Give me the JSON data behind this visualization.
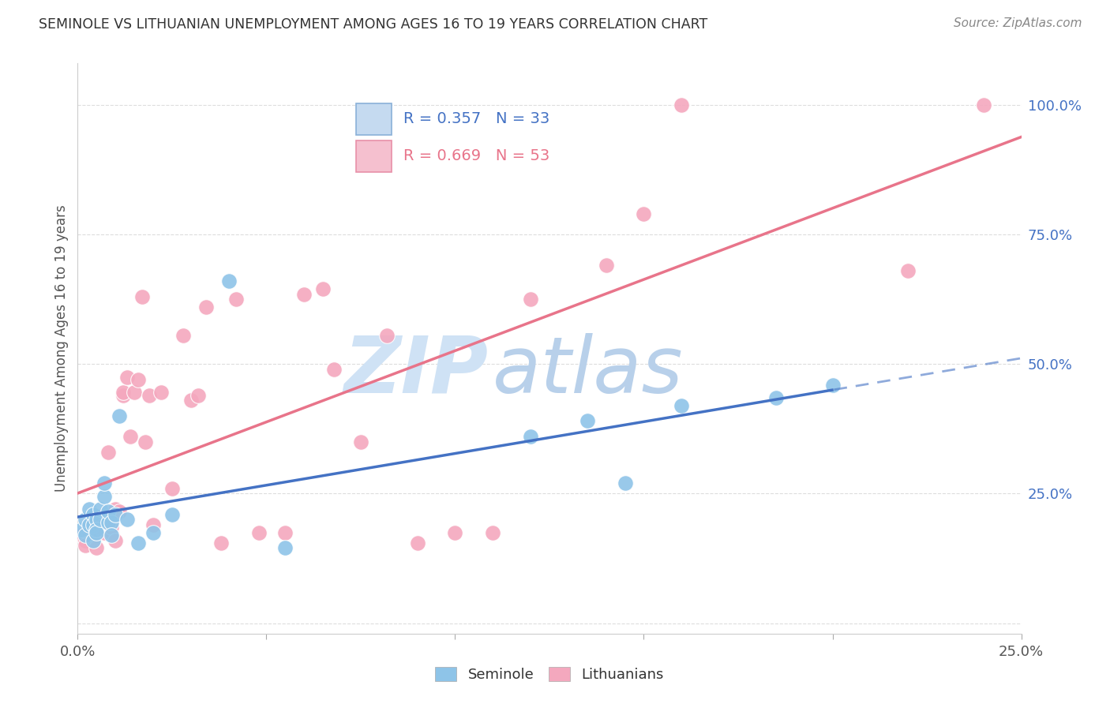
{
  "title": "SEMINOLE VS LITHUANIAN UNEMPLOYMENT AMONG AGES 16 TO 19 YEARS CORRELATION CHART",
  "source": "Source: ZipAtlas.com",
  "ylabel_label": "Unemployment Among Ages 16 to 19 years",
  "legend_label1": "Seminole",
  "legend_label2": "Lithuanians",
  "R_seminole": "R = 0.357",
  "N_seminole": "N = 33",
  "R_lithuanian": "R = 0.669",
  "N_lithuanian": "N = 53",
  "xlim": [
    0.0,
    0.25
  ],
  "ylim": [
    -0.02,
    1.08
  ],
  "color_seminole": "#8ec4e8",
  "color_lithuanian": "#f4a8be",
  "line_color_seminole": "#4472c4",
  "line_color_lithuanian": "#e8748a",
  "seminole_x": [
    0.001,
    0.002,
    0.002,
    0.003,
    0.003,
    0.004,
    0.004,
    0.004,
    0.005,
    0.005,
    0.005,
    0.006,
    0.006,
    0.007,
    0.007,
    0.008,
    0.008,
    0.009,
    0.009,
    0.01,
    0.011,
    0.013,
    0.016,
    0.02,
    0.025,
    0.04,
    0.055,
    0.12,
    0.135,
    0.145,
    0.16,
    0.185,
    0.2
  ],
  "seminole_y": [
    0.18,
    0.2,
    0.17,
    0.22,
    0.19,
    0.21,
    0.19,
    0.16,
    0.2,
    0.18,
    0.175,
    0.22,
    0.2,
    0.245,
    0.27,
    0.195,
    0.215,
    0.195,
    0.17,
    0.21,
    0.4,
    0.2,
    0.155,
    0.175,
    0.21,
    0.66,
    0.145,
    0.36,
    0.39,
    0.27,
    0.42,
    0.435,
    0.46
  ],
  "lithuanian_x": [
    0.001,
    0.002,
    0.002,
    0.003,
    0.003,
    0.004,
    0.005,
    0.005,
    0.006,
    0.006,
    0.007,
    0.007,
    0.008,
    0.008,
    0.009,
    0.009,
    0.01,
    0.01,
    0.011,
    0.012,
    0.012,
    0.013,
    0.014,
    0.015,
    0.016,
    0.017,
    0.018,
    0.019,
    0.02,
    0.022,
    0.025,
    0.028,
    0.03,
    0.032,
    0.034,
    0.038,
    0.042,
    0.048,
    0.055,
    0.06,
    0.065,
    0.068,
    0.075,
    0.082,
    0.09,
    0.1,
    0.11,
    0.12,
    0.14,
    0.15,
    0.16,
    0.22,
    0.24
  ],
  "lithuanian_y": [
    0.17,
    0.16,
    0.15,
    0.175,
    0.185,
    0.165,
    0.175,
    0.145,
    0.19,
    0.2,
    0.185,
    0.175,
    0.19,
    0.33,
    0.175,
    0.185,
    0.22,
    0.16,
    0.215,
    0.44,
    0.445,
    0.475,
    0.36,
    0.445,
    0.47,
    0.63,
    0.35,
    0.44,
    0.19,
    0.445,
    0.26,
    0.555,
    0.43,
    0.44,
    0.61,
    0.155,
    0.625,
    0.175,
    0.175,
    0.635,
    0.645,
    0.49,
    0.35,
    0.555,
    0.155,
    0.175,
    0.175,
    0.625,
    0.69,
    0.79,
    1.0,
    0.68,
    1.0
  ],
  "background_color": "#ffffff",
  "grid_color": "#dddddd",
  "watermark_text": "ZIP",
  "watermark_text2": "atlas",
  "watermark_color": "#cfe2f5",
  "watermark_color2": "#b8d0ea"
}
